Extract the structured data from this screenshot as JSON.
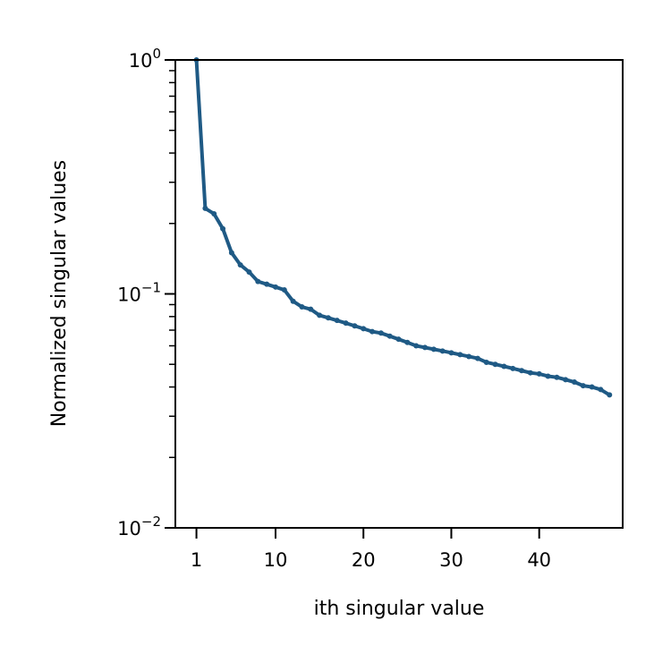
{
  "chart_data": {
    "type": "line",
    "xlabel": "ith singular value",
    "ylabel": "Normalized singular values",
    "xlim": [
      -1.4,
      49.5
    ],
    "ylim": [
      0.01,
      1
    ],
    "yscale": "log",
    "grid": false,
    "x_ticks": [
      1,
      10,
      20,
      30,
      40
    ],
    "y_ticks": [
      {
        "value": 1,
        "base": "10",
        "exp": "0"
      },
      {
        "value": 0.1,
        "base": "10",
        "exp": "−1"
      },
      {
        "value": 0.01,
        "base": "10",
        "exp": "−2"
      }
    ],
    "series": [
      {
        "color": "#1f5a85",
        "x": [
          1,
          2,
          3,
          4,
          5,
          6,
          7,
          8,
          9,
          10,
          11,
          12,
          13,
          14,
          15,
          16,
          17,
          18,
          19,
          20,
          21,
          22,
          23,
          24,
          25,
          26,
          27,
          28,
          29,
          30,
          31,
          32,
          33,
          34,
          35,
          36,
          37,
          38,
          39,
          40,
          41,
          42,
          43,
          44,
          45,
          46,
          47,
          48
        ],
        "y": [
          1.0,
          0.232,
          0.22,
          0.19,
          0.15,
          0.133,
          0.124,
          0.113,
          0.11,
          0.107,
          0.104,
          0.093,
          0.088,
          0.086,
          0.081,
          0.079,
          0.077,
          0.075,
          0.073,
          0.071,
          0.069,
          0.068,
          0.066,
          0.064,
          0.062,
          0.06,
          0.059,
          0.058,
          0.057,
          0.056,
          0.055,
          0.054,
          0.053,
          0.051,
          0.05,
          0.049,
          0.048,
          0.047,
          0.046,
          0.0455,
          0.0445,
          0.044,
          0.043,
          0.042,
          0.0405,
          0.04,
          0.039,
          0.037
        ]
      }
    ]
  }
}
